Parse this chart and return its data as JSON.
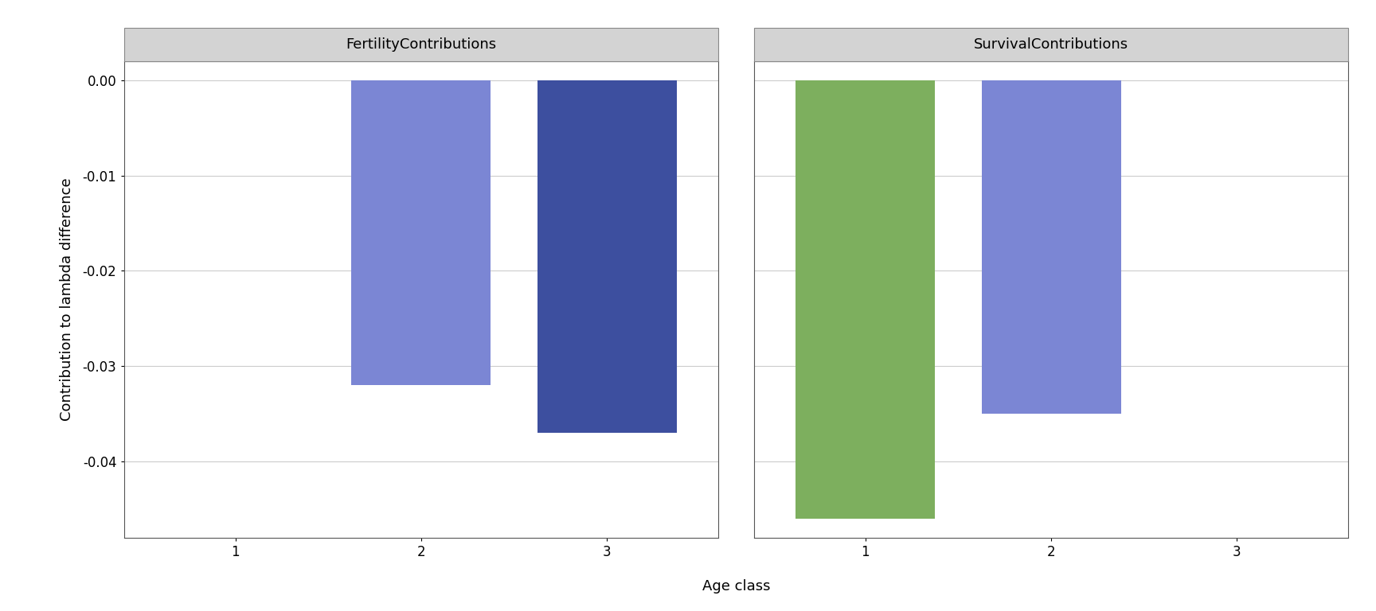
{
  "fertility_values": [
    0.0,
    -0.032,
    -0.037
  ],
  "survival_values": [
    -0.046,
    -0.035,
    0.0
  ],
  "fertility_colors": [
    "#FFFFFF",
    "#7B86D4",
    "#3D4F9F"
  ],
  "survival_colors": [
    "#7DAF5E",
    "#7B86D4",
    "#FFFFFF"
  ],
  "age_classes": [
    1,
    2,
    3
  ],
  "xlim": [
    0.4,
    3.6
  ],
  "ylim": [
    -0.048,
    0.002
  ],
  "yticks": [
    0.0,
    -0.01,
    -0.02,
    -0.03,
    -0.04
  ],
  "ylabel": "Contribution to lambda difference",
  "xlabel": "Age class",
  "fertility_title": "FertilityContributions",
  "survival_title": "SurvivalContributions",
  "panel_title_bg": "#D3D3D3",
  "panel_title_border": "#888888",
  "plot_bg": "#FFFFFF",
  "figure_bg": "#FFFFFF",
  "grid_color": "#CCCCCC",
  "bar_width": 0.75,
  "spine_color": "#555555",
  "tick_label_size": 12,
  "axis_label_size": 13,
  "panel_title_size": 13
}
